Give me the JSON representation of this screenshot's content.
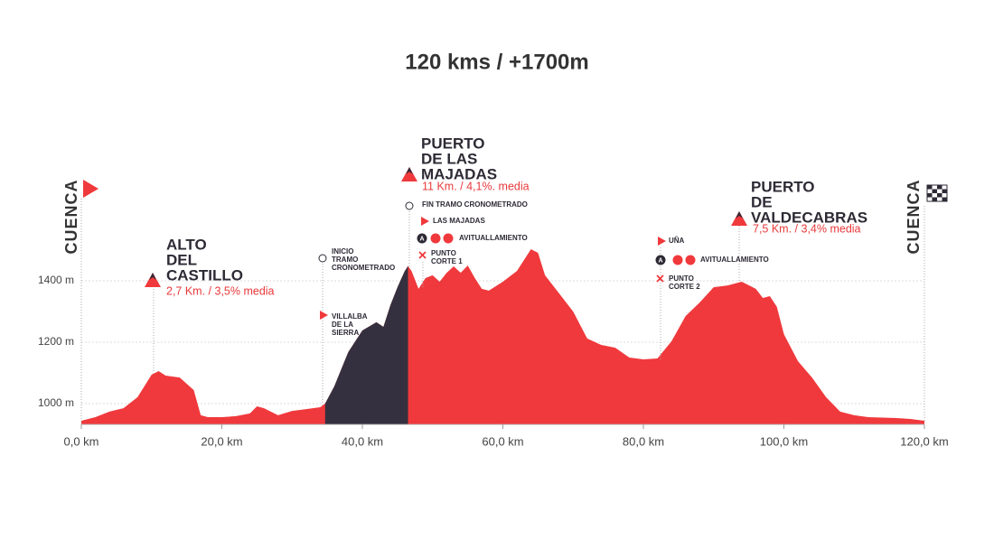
{
  "chart_data": {
    "type": "area",
    "title": "120 kms / +1700m",
    "x": [
      0,
      2,
      4,
      6,
      8,
      10,
      11,
      12,
      14,
      16,
      17,
      18,
      20,
      22,
      24,
      25,
      26,
      28,
      30,
      32,
      34,
      34.7,
      36,
      38,
      40,
      42,
      43,
      44,
      45,
      46,
      46.5,
      47,
      48,
      49,
      50,
      51,
      52,
      53,
      54,
      55,
      56,
      57,
      58,
      60,
      62,
      64,
      65,
      66,
      68,
      70,
      72,
      74,
      76,
      78,
      80,
      82,
      84,
      86,
      88,
      90,
      92,
      94,
      96,
      97,
      98,
      99,
      100,
      102,
      104,
      106,
      108,
      110,
      112,
      116,
      118,
      120
    ],
    "values": [
      944,
      956,
      974,
      985,
      1021,
      1094,
      1106,
      1091,
      1085,
      1044,
      962,
      956,
      956,
      959,
      968,
      991,
      985,
      962,
      976,
      982,
      988,
      1000,
      1056,
      1168,
      1238,
      1265,
      1250,
      1321,
      1379,
      1430,
      1448,
      1432,
      1374,
      1409,
      1418,
      1397,
      1426,
      1447,
      1426,
      1450,
      1409,
      1374,
      1368,
      1397,
      1432,
      1503,
      1491,
      1418,
      1359,
      1300,
      1212,
      1191,
      1182,
      1150,
      1144,
      1147,
      1203,
      1285,
      1329,
      1379,
      1385,
      1397,
      1374,
      1344,
      1350,
      1315,
      1226,
      1138,
      1085,
      1021,
      974,
      962,
      956,
      953,
      950,
      944
    ],
    "color": "#f0393c",
    "timed_color": "#35303f",
    "timed_segment": [
      34.7,
      46.5
    ],
    "xlim": [
      0,
      120
    ],
    "ylim": [
      932,
      1520
    ],
    "xticks": [
      {
        "value": 0,
        "label": "0,0 km"
      },
      {
        "value": 20,
        "label": "20,0 km"
      },
      {
        "value": 40,
        "label": "40,0 km"
      },
      {
        "value": 60,
        "label": "60,0 km"
      },
      {
        "value": 80,
        "label": "80,0 km"
      },
      {
        "value": 100,
        "label": "100,0 km"
      },
      {
        "value": 120,
        "label": "120,0 km"
      }
    ],
    "yticks": [
      {
        "value": 1000,
        "label": "1000 m"
      },
      {
        "value": 1200,
        "label": "1200 m"
      },
      {
        "value": 1400,
        "label": "1400 m"
      }
    ],
    "grid": true,
    "annotations": {
      "start": "CUENCA",
      "finish": "CUENCA",
      "alto_castillo": {
        "title": [
          "ALTO",
          "DEL",
          "CASTILLO"
        ],
        "detail": "2,7 Km. / 3,5% media"
      },
      "inicio": [
        "INICIO",
        "TRAMO",
        "CRONOMETRADO"
      ],
      "villalba": [
        "VILLALBA",
        "DE LA",
        "SIERRA"
      ],
      "majadas": {
        "title": [
          "PUERTO",
          "DE LAS",
          "MAJADAS"
        ],
        "detail": "11 Km. / 4,1%. media",
        "fin": "FIN TRAMO CRONOMETRADO",
        "town": "LAS MAJADAS",
        "aid_icon": "A",
        "aid": "AVITUALLAMIENTO",
        "corte": [
          "PUNTO",
          "CORTE 1"
        ]
      },
      "una": {
        "town": "UÑA",
        "aid_icon": "A",
        "aid": "AVITUALLAMIENTO",
        "corte": [
          "PUNTO",
          "CORTE 2"
        ]
      },
      "valdecabras": {
        "title": [
          "PUERTO",
          "DE",
          "VALDECABRAS"
        ],
        "detail": "7,5 Km. / 3,4% media"
      }
    }
  }
}
